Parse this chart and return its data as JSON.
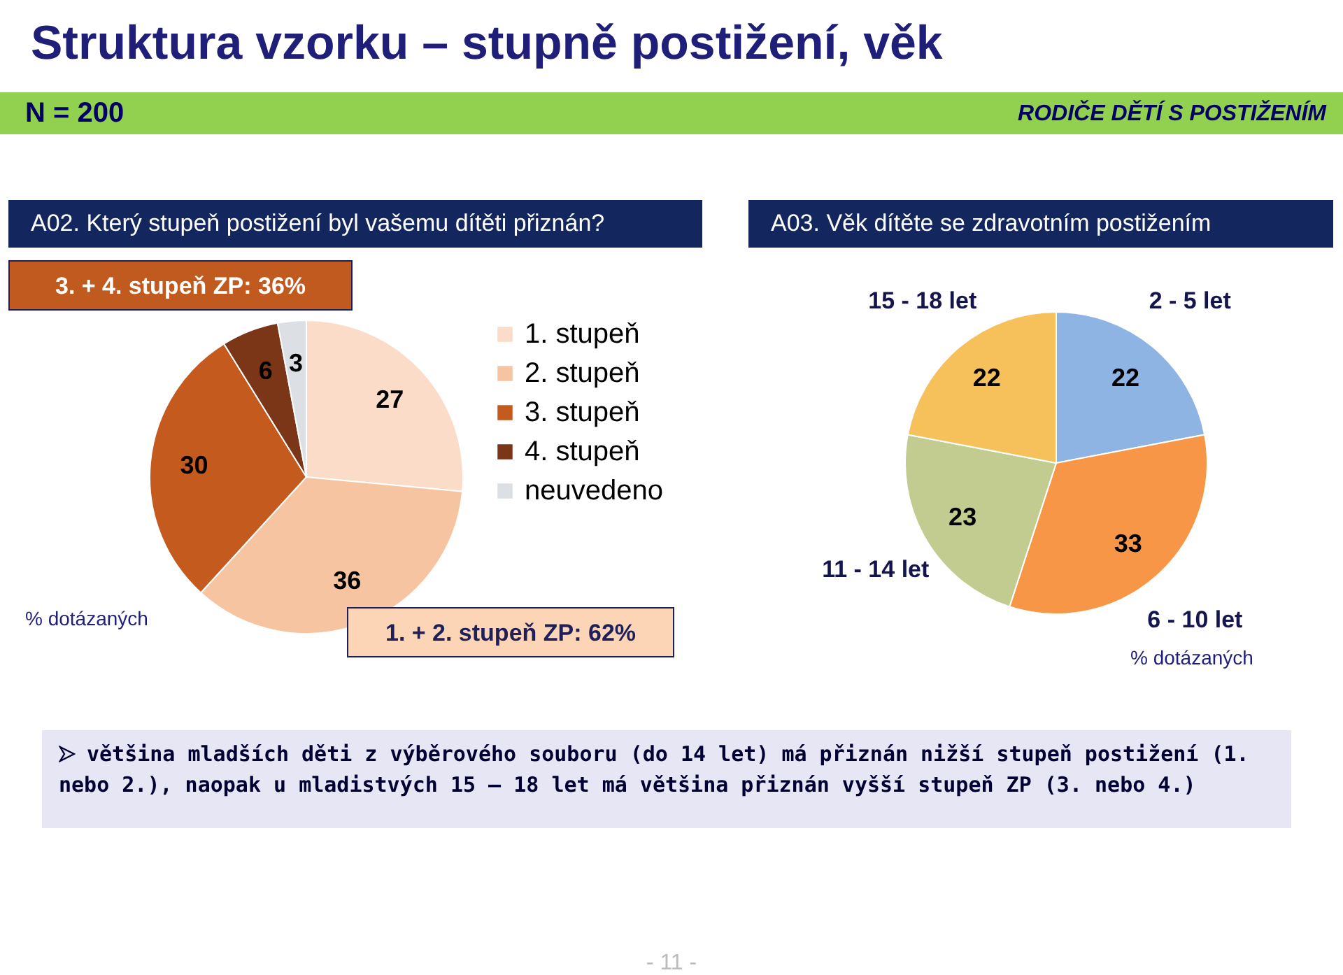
{
  "chart_data": [
    {
      "type": "pie",
      "title": "A02. Který stupeň postižení byl vašemu dítěti přiznán?",
      "categories": [
        "1. stupeň",
        "2. stupeň",
        "3. stupeň",
        "4. stupeň",
        "neuvedeno"
      ],
      "values": [
        27,
        36,
        30,
        6,
        3
      ],
      "colors": [
        "#fbdcc8",
        "#f6c4a0",
        "#c55a1e",
        "#7b3517",
        "#dcdfe3"
      ],
      "data_labels": true,
      "legend": "right",
      "annotations": [
        "Struktura vzorku – stupně postižení, věk",
        "N = 200",
        "RODIČE DĚTÍ S POSTIŽENÍM",
        "3. + 4. stupeň ZP: 36%",
        "1. + 2. stupeň ZP: 62%",
        "% dotázaných"
      ]
    },
    {
      "type": "pie",
      "title": "A03. Věk dítěte se zdravotním postižením",
      "categories": [
        "2 - 5 let",
        "6 - 10 let",
        "11 - 14 let",
        "15 - 18 let"
      ],
      "values": [
        22,
        33,
        23,
        22
      ],
      "colors": [
        "#8db4e2",
        "#f79646",
        "#c3cc90",
        "#f6c15a"
      ],
      "data_labels": true,
      "legend": false,
      "annotations": [
        "% dotázaných",
        "většina mladších děti z výběrového souboru (do 14 let) má přiznán nižší stupeň postižení (1. nebo 2.), naopak u mladistvých 15 – 18 let má většina přiznán vyšší stupeň ZP (3. nebo 4.)",
        "- 11 -"
      ]
    }
  ]
}
